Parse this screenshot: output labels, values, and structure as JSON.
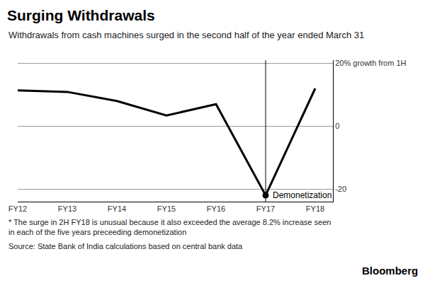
{
  "chart_data": {
    "type": "line",
    "title": "Surging Withdrawals",
    "subtitle": "Withdrawals from cash machines surged in the second half of the year ended March 31",
    "categories": [
      "FY12",
      "FY13",
      "FY14",
      "FY15",
      "FY16",
      "FY17",
      "FY18"
    ],
    "values": [
      11.4,
      10.9,
      8,
      3.4,
      7,
      -22,
      12
    ],
    "color": "#000000",
    "ylim": [
      -24,
      21
    ],
    "yticks": [
      {
        "value": 20,
        "label": "20% growth from 1H"
      },
      0,
      -20
    ],
    "grid": true,
    "annotations": [
      {
        "category": "FY17",
        "text": "Demonetization"
      }
    ],
    "footnote": [
      "* The surge in 2H FY18 is unusual because it also exceeded the average 8.2% increase seen",
      "in each of the five years preceeding demonetization"
    ],
    "source": "Source: State Bank of India calculations based on central bank data",
    "logo": "Bloomberg"
  }
}
